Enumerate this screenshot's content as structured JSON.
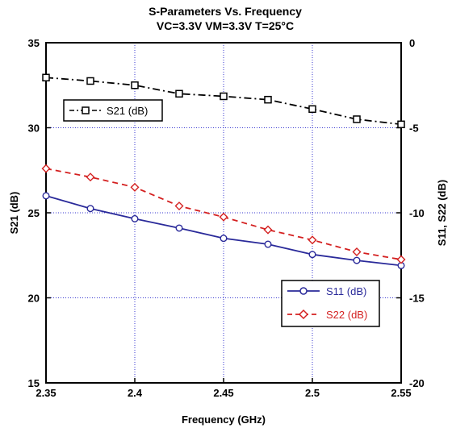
{
  "chart_data": {
    "type": "line",
    "title": "S-Parameters Vs. Frequency",
    "subtitle": "VC=3.3V VM=3.3V T=25°C",
    "xlabel": "Frequency (GHz)",
    "ylabel_left": "S21 (dB)",
    "ylabel_right": "S11, S22 (dB)",
    "xlim": [
      2.35,
      2.55
    ],
    "ylim_left": [
      15,
      35
    ],
    "ylim_right": [
      -20,
      0
    ],
    "x_ticks": [
      "2.35",
      "2.4",
      "2.45",
      "2.5",
      "2.55"
    ],
    "y_left_ticks": [
      "15",
      "20",
      "25",
      "30",
      "35"
    ],
    "y_right_ticks": [
      "-20",
      "-15",
      "-10",
      "-5",
      "0"
    ],
    "grid": true,
    "x": [
      2.35,
      2.375,
      2.4,
      2.425,
      2.45,
      2.475,
      2.5,
      2.525,
      2.55
    ],
    "series": [
      {
        "name": "S21 (dB)",
        "axis": "left",
        "color": "#000000",
        "marker": "square",
        "dash": "dash-dot",
        "values": [
          32.95,
          32.75,
          32.5,
          32.0,
          31.85,
          31.65,
          31.1,
          30.5,
          30.2
        ]
      },
      {
        "name": "S11 (dB)",
        "axis": "right",
        "color": "#2a2a9a",
        "marker": "circle",
        "dash": "solid",
        "values": [
          -9.0,
          -9.75,
          -10.35,
          -10.9,
          -11.5,
          -11.85,
          -12.45,
          -12.8,
          -13.1
        ]
      },
      {
        "name": "S22 (dB)",
        "axis": "right",
        "color": "#d42020",
        "marker": "diamond",
        "dash": "dashed",
        "values": [
          -7.4,
          -7.9,
          -8.5,
          -9.6,
          -10.25,
          -11.0,
          -11.6,
          -12.3,
          -12.75
        ]
      }
    ],
    "legends": [
      {
        "position": "top-left",
        "entries": [
          "S21 (dB)"
        ]
      },
      {
        "position": "bottom-right",
        "entries": [
          "S11 (dB)",
          "S22 (dB)"
        ]
      }
    ]
  }
}
